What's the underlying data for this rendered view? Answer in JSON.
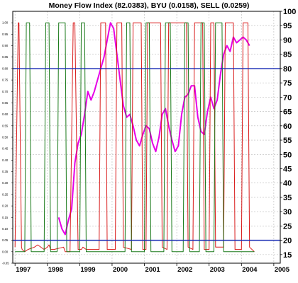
{
  "chart_data": {
    "type": "line",
    "title": "Money Flow Index (82.0383), BYU (0.0158), SELL (0.0259)",
    "x_ticks": [
      "1997",
      "1998",
      "1999",
      "2000",
      "2001",
      "2002",
      "2003",
      "2004",
      "2005"
    ],
    "left_axis": {
      "ylim": [
        -0.05,
        1.05
      ],
      "ticks": [
        "1.00",
        "0.95",
        "0.90",
        "0.85",
        "0.80",
        "0.75",
        "0.70",
        "0.65",
        "0.60",
        "0.55",
        "0.50",
        "0.45",
        "0.40",
        "0.35",
        "0.30",
        "0.25",
        "0.20",
        "0.15",
        "0.10",
        "0.05",
        "0.00",
        "-0.05"
      ]
    },
    "right_axis": {
      "ylim": [
        12,
        100
      ],
      "ticks": [
        "100",
        "95",
        "90",
        "85",
        "80",
        "75",
        "70",
        "65",
        "60",
        "55",
        "50",
        "45",
        "40",
        "35",
        "30",
        "25",
        "20",
        "15"
      ]
    },
    "reference_lines": [
      {
        "value": 80,
        "axis": "right",
        "color": "#1c2fb5"
      },
      {
        "value": 20,
        "axis": "right",
        "color": "#1c2fb5"
      }
    ],
    "series": [
      {
        "axis": "right",
        "color": "#e600e6",
        "x": [
          1998.35,
          1998.45,
          1998.55,
          1998.65,
          1998.75,
          1998.85,
          1998.95,
          1999.05,
          1999.15,
          1999.25,
          1999.35,
          1999.45,
          1999.55,
          1999.65,
          1999.75,
          1999.85,
          1999.95,
          2000.05,
          2000.15,
          2000.25,
          2000.35,
          2000.45,
          2000.55,
          2000.65,
          2000.75,
          2000.85,
          2000.95,
          2001.05,
          2001.15,
          2001.25,
          2001.35,
          2001.45,
          2001.55,
          2001.65,
          2001.75,
          2001.85,
          2001.95,
          2002.05,
          2002.15,
          2002.25,
          2002.35,
          2002.45,
          2002.55,
          2002.65,
          2002.75,
          2002.85,
          2002.95,
          2003.05,
          2003.15,
          2003.25,
          2003.35,
          2003.45,
          2003.55,
          2003.65,
          2003.75,
          2003.85,
          2003.95,
          2004.05,
          2004.15,
          2004.25
        ],
        "values": [
          28,
          24,
          22,
          27,
          31,
          47,
          54,
          57,
          64,
          72,
          69,
          72,
          76,
          80,
          84,
          90,
          96,
          94,
          85,
          76,
          67,
          63,
          64,
          60,
          55,
          53,
          57,
          60,
          59,
          54,
          51,
          56,
          64,
          66,
          60,
          55,
          51,
          53,
          64,
          70,
          71,
          74,
          74,
          63,
          58,
          57,
          65,
          70,
          66,
          69,
          78,
          85,
          88,
          86,
          91,
          89,
          90,
          91,
          90,
          88
        ]
      },
      {
        "axis": "left",
        "color": "#d91a1a",
        "x": [
          1997.0,
          1997.1,
          1997.12,
          1997.2,
          1997.22,
          1997.3,
          1997.4,
          1997.6,
          1997.7,
          1997.9,
          1998.0,
          1998.05,
          1998.1,
          1998.2,
          1998.5,
          1998.55,
          1998.7,
          1998.8,
          1998.85,
          1998.95,
          1999.05,
          1999.1,
          1999.2,
          1999.6,
          1999.65,
          1999.8,
          1999.85,
          2000.1,
          2000.15,
          2000.3,
          2000.35,
          2000.6,
          2000.65,
          2000.9,
          2000.95,
          2001.05,
          2001.1,
          2001.5,
          2001.55,
          2001.7,
          2001.75,
          2002.3,
          2002.35,
          2002.5,
          2002.55,
          2002.8,
          2002.85,
          2003.0,
          2003.05,
          2003.15,
          2003.2,
          2003.45,
          2003.5,
          2003.75,
          2003.8,
          2004.0,
          2004.05,
          2004.2,
          2004.25,
          2004.4
        ],
        "values": [
          0.02,
          1.0,
          1.0,
          0.02,
          0.01,
          0.0,
          0.01,
          0.02,
          0.03,
          0.01,
          0.02,
          0.03,
          0.01,
          0.01,
          0.02,
          0.0,
          0.0,
          1.0,
          1.0,
          0.01,
          0.01,
          0.02,
          0.01,
          0.01,
          1.0,
          1.0,
          0.01,
          0.01,
          1.0,
          1.0,
          0.02,
          0.01,
          1.0,
          1.0,
          0.01,
          0.01,
          1.0,
          1.0,
          0.02,
          0.01,
          1.0,
          1.0,
          0.02,
          0.01,
          1.0,
          1.0,
          0.01,
          0.01,
          1.0,
          1.0,
          0.02,
          0.02,
          1.0,
          1.0,
          0.01,
          0.01,
          1.0,
          1.0,
          0.02,
          0.0
        ]
      },
      {
        "axis": "left",
        "color": "#1a7a1a",
        "x": [
          1997.0,
          1997.1,
          1997.3,
          1997.35,
          1997.45,
          1997.5,
          1997.9,
          1997.95,
          1998.05,
          1998.1,
          1998.3,
          1998.35,
          1998.55,
          1998.6,
          1999.0,
          1999.05,
          1999.15,
          1999.2,
          1999.75,
          2000.0,
          2000.4,
          2000.45,
          2000.55,
          2000.6,
          2001.0,
          2001.05,
          2001.15,
          2001.2,
          2001.6,
          2001.65,
          2001.8,
          2001.85,
          2002.2,
          2002.25,
          2002.35,
          2002.4,
          2002.7,
          2002.75,
          2002.85,
          2002.9,
          2003.15,
          2003.2,
          2003.4,
          2003.45,
          2004.0,
          2004.4
        ],
        "values": [
          0.0,
          0.0,
          0.0,
          1.0,
          1.0,
          0.0,
          0.0,
          1.0,
          1.0,
          0.0,
          0.0,
          1.0,
          1.0,
          0.0,
          0.0,
          1.0,
          1.0,
          0.0,
          0.0,
          0.0,
          0.0,
          1.0,
          1.0,
          0.0,
          0.0,
          1.0,
          1.0,
          0.0,
          0.0,
          1.0,
          1.0,
          0.0,
          0.0,
          1.0,
          1.0,
          0.0,
          0.0,
          1.0,
          1.0,
          0.0,
          0.0,
          1.0,
          1.0,
          0.0,
          0.0,
          0.0
        ]
      }
    ],
    "xlim": [
      1996.93,
      2005.2
    ],
    "grid": true,
    "grid_color": "#b8b8b8",
    "grid_style": "dashed"
  }
}
